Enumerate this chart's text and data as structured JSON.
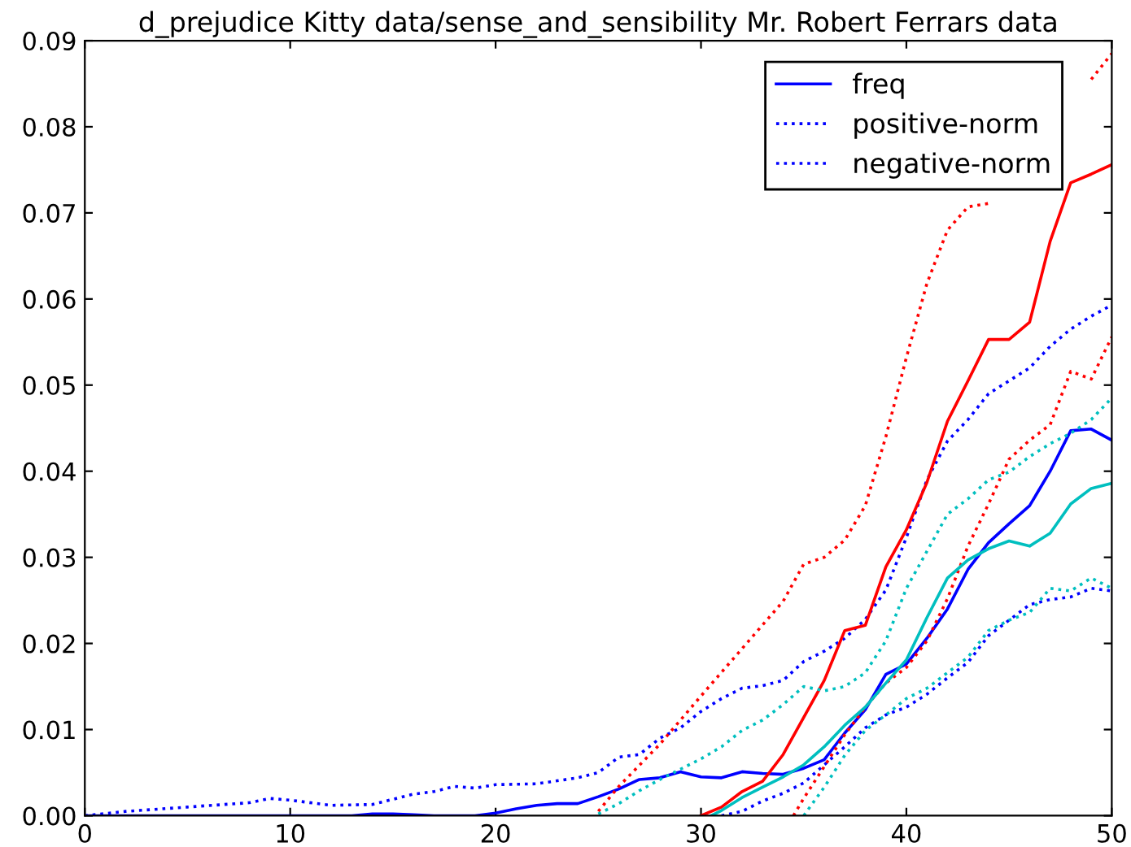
{
  "chart_data": {
    "type": "line",
    "title": "d_prejudice Kitty data/sense_and_sensibility Mr. Robert Ferrars data",
    "xlim": [
      0,
      50
    ],
    "xticks": [
      0,
      10,
      20,
      30,
      40,
      50
    ],
    "ylim": [
      0,
      0.09
    ],
    "yticks": [
      {
        "value": 0,
        "label": "0.00"
      },
      {
        "value": 0.01,
        "label": "0.01"
      },
      {
        "value": 0.02,
        "label": "0.02"
      },
      {
        "value": 0.03,
        "label": "0.03"
      },
      {
        "value": 0.04,
        "label": "0.04"
      },
      {
        "value": 0.05,
        "label": "0.05"
      },
      {
        "value": 0.06,
        "label": "0.06"
      },
      {
        "value": 0.07,
        "label": "0.07"
      },
      {
        "value": 0.08,
        "label": "0.08"
      },
      {
        "value": 0.09,
        "label": "0.09"
      }
    ],
    "grid": false,
    "legend": "top right",
    "series": [
      {
        "name": "freq",
        "color": "#0000ff",
        "line_style": "solid",
        "x": [
          0,
          13,
          14,
          15,
          16,
          17,
          19,
          20,
          21,
          22,
          23,
          24,
          25,
          26,
          27,
          28,
          29,
          30,
          31,
          32,
          33,
          34,
          35,
          36,
          37,
          38,
          39,
          40,
          41,
          42,
          43,
          44,
          45,
          46,
          47,
          48,
          49,
          50
        ],
        "values": [
          0,
          0,
          0.0002,
          0.0002,
          0.0001,
          0,
          0,
          0.0003,
          0.0008,
          0.0012,
          0.0014,
          0.0014,
          0.0022,
          0.0031,
          0.0042,
          0.0044,
          0.0051,
          0.0045,
          0.0044,
          0.0051,
          0.0049,
          0.0048,
          0.0055,
          0.0065,
          0.0096,
          0.0123,
          0.0164,
          0.0176,
          0.0206,
          0.024,
          0.0286,
          0.0317,
          0.0339,
          0.036,
          0.04,
          0.0447,
          0.0449,
          0.0436
        ]
      },
      {
        "name": "positive-norm",
        "color": "#0000ff",
        "line_style": "dotted",
        "x": [
          0,
          2,
          5,
          8,
          9,
          10,
          12,
          14,
          15,
          16,
          17,
          18,
          19,
          20,
          22,
          24,
          25,
          26,
          27,
          28,
          29,
          30,
          31,
          32,
          33,
          34,
          35,
          36,
          37,
          38,
          39,
          40,
          41,
          42,
          43,
          44,
          45,
          46,
          47,
          48,
          49,
          50
        ],
        "values": [
          0,
          0.0005,
          0.001,
          0.0015,
          0.002,
          0.0018,
          0.0012,
          0.0013,
          0.0019,
          0.0025,
          0.0028,
          0.0034,
          0.0032,
          0.0036,
          0.0037,
          0.0044,
          0.005,
          0.0068,
          0.0071,
          0.009,
          0.0102,
          0.0121,
          0.0136,
          0.0148,
          0.0151,
          0.0157,
          0.0179,
          0.0191,
          0.0206,
          0.0228,
          0.0262,
          0.0323,
          0.039,
          0.0435,
          0.046,
          0.049,
          0.0505,
          0.052,
          0.0545,
          0.0565,
          0.058,
          0.0593
        ]
      },
      {
        "name": "negative-norm",
        "color": "#0000ff",
        "line_style": "dotted",
        "x": [
          31,
          32,
          33,
          34,
          35,
          36,
          37,
          38,
          39,
          40,
          41,
          42,
          43,
          44,
          45,
          46,
          47,
          48,
          49,
          50
        ],
        "values": [
          0,
          0.0005,
          0.0017,
          0.0026,
          0.0038,
          0.0059,
          0.008,
          0.0102,
          0.0117,
          0.0126,
          0.0141,
          0.016,
          0.0178,
          0.0209,
          0.0227,
          0.0245,
          0.0251,
          0.0254,
          0.0264,
          0.0261
        ]
      },
      {
        "color": "#ff0000",
        "line_style": "solid",
        "x": [
          30,
          31,
          32,
          33,
          34,
          35,
          36,
          37,
          38,
          39,
          40,
          41,
          42,
          43,
          44,
          45,
          46,
          47,
          48,
          49,
          50
        ],
        "values": [
          0,
          0.001,
          0.0028,
          0.004,
          0.0071,
          0.0114,
          0.0157,
          0.0215,
          0.0221,
          0.0289,
          0.0332,
          0.0387,
          0.0458,
          0.0505,
          0.0553,
          0.0553,
          0.0573,
          0.0667,
          0.0735,
          0.0745,
          0.0756
        ]
      },
      {
        "color": "#ff0000",
        "line_style": "dotted",
        "x": [
          25,
          26,
          28,
          30,
          32,
          34,
          35,
          36,
          37,
          38,
          39,
          40,
          41,
          42,
          43,
          44,
          45,
          46,
          47,
          48,
          49,
          50
        ],
        "values": [
          0.0005,
          0.0034,
          0.0083,
          0.0139,
          0.0194,
          0.0249,
          0.0292,
          0.03,
          0.032,
          0.036,
          0.044,
          0.0532,
          0.0618,
          0.068,
          0.0707,
          0.0711,
          null,
          null,
          null,
          null,
          0.0855,
          0.0885
        ]
      },
      {
        "color": "#ff0000",
        "line_style": "dotted",
        "x": [
          34.5,
          35,
          36,
          37,
          38,
          39,
          40,
          41,
          42,
          43,
          44,
          45,
          46,
          47,
          48,
          49,
          50
        ],
        "values": [
          0,
          0.002,
          0.0057,
          0.0094,
          0.0126,
          0.0154,
          0.0172,
          0.0203,
          0.0252,
          0.0313,
          0.0362,
          0.0414,
          0.0436,
          0.0454,
          0.0516,
          0.0507,
          0.0556
        ]
      },
      {
        "color": "#00bfbf",
        "line_style": "solid",
        "x": [
          30.5,
          31,
          32,
          33,
          34,
          35,
          36,
          37,
          38,
          39,
          40,
          41,
          42,
          43,
          44,
          45,
          46,
          47,
          48,
          49,
          50
        ],
        "values": [
          0,
          0.0006,
          0.0021,
          0.0033,
          0.0045,
          0.0059,
          0.008,
          0.0105,
          0.0126,
          0.0154,
          0.0181,
          0.023,
          0.0276,
          0.0297,
          0.031,
          0.0319,
          0.0313,
          0.0328,
          0.0362,
          0.038,
          0.0386
        ]
      },
      {
        "color": "#00bfbf",
        "line_style": "dotted",
        "x": [
          25,
          26,
          27,
          28,
          29,
          30,
          31,
          32,
          33,
          34,
          35,
          36,
          37,
          38,
          39,
          40,
          41,
          42,
          43,
          44,
          45,
          46,
          47,
          48,
          49,
          50
        ],
        "values": [
          0.0002,
          0.0014,
          0.0029,
          0.0042,
          0.0054,
          0.0066,
          0.008,
          0.0099,
          0.0111,
          0.0129,
          0.015,
          0.0145,
          0.015,
          0.0166,
          0.0203,
          0.0264,
          0.0307,
          0.035,
          0.0368,
          0.039,
          0.0399,
          0.0417,
          0.0432,
          0.0444,
          0.046,
          0.0485
        ]
      },
      {
        "color": "#00bfbf",
        "line_style": "dotted",
        "x": [
          35,
          36,
          37,
          38,
          39,
          40,
          41,
          42,
          43,
          44,
          45,
          46,
          47,
          48,
          49,
          50
        ],
        "values": [
          0,
          0.0033,
          0.007,
          0.0099,
          0.0117,
          0.0136,
          0.0148,
          0.0166,
          0.0184,
          0.0215,
          0.0227,
          0.0236,
          0.0264,
          0.0261,
          0.0276,
          0.0264
        ]
      }
    ]
  }
}
